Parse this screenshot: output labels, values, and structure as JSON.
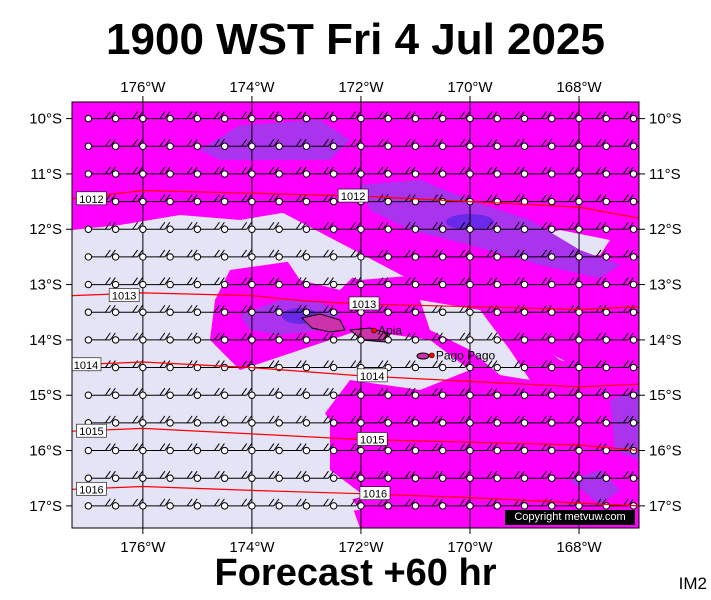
{
  "header": {
    "title": "1900 WST Fri 4 Jul 2025"
  },
  "footer": {
    "forecast": "Forecast +60 hr",
    "tag": "IM2"
  },
  "map": {
    "copyright": "Copyright metvuw.com",
    "lon_range": [
      -177.3,
      -166.9
    ],
    "lat_range": [
      -17.4,
      -9.7
    ],
    "lon_ticks": [
      {
        "value": -176,
        "label": "176°W"
      },
      {
        "value": -174,
        "label": "174°W"
      },
      {
        "value": -172,
        "label": "172°W"
      },
      {
        "value": -170,
        "label": "170°W"
      },
      {
        "value": -168,
        "label": "168°W"
      }
    ],
    "lat_ticks": [
      {
        "value": -10,
        "label": "10°S"
      },
      {
        "value": -11,
        "label": "11°S"
      },
      {
        "value": -12,
        "label": "12°S"
      },
      {
        "value": -13,
        "label": "13°S"
      },
      {
        "value": -14,
        "label": "14°S"
      },
      {
        "value": -15,
        "label": "15°S"
      },
      {
        "value": -16,
        "label": "16°S"
      },
      {
        "value": -17,
        "label": "17°S"
      }
    ],
    "places": [
      {
        "name": "Apia",
        "lon": -171.76,
        "lat": -13.83
      },
      {
        "name": "Pago Pago",
        "lon": -170.7,
        "lat": -14.28
      }
    ],
    "isobars": [
      {
        "label": "1012",
        "points": [
          [
            -177.3,
            -11.45
          ],
          [
            -176,
            -11.3
          ],
          [
            -174,
            -11.35
          ],
          [
            -172,
            -11.4
          ],
          [
            -170,
            -11.5
          ],
          [
            -168,
            -11.6
          ],
          [
            -166.9,
            -11.8
          ]
        ],
        "labels_at": [
          [
            -177.2,
            -11.45
          ],
          [
            -172.4,
            -11.4
          ]
        ]
      },
      {
        "label": "1013",
        "points": [
          [
            -177.3,
            -13.2
          ],
          [
            -176,
            -13.15
          ],
          [
            -174,
            -13.2
          ],
          [
            -173,
            -13.3
          ],
          [
            -172,
            -13.35
          ],
          [
            -170,
            -13.4
          ],
          [
            -168,
            -13.45
          ],
          [
            -166.9,
            -13.4
          ]
        ],
        "labels_at": [
          [
            -176.6,
            -13.2
          ],
          [
            -172.2,
            -13.35
          ]
        ]
      },
      {
        "label": "1014",
        "points": [
          [
            -177.3,
            -14.45
          ],
          [
            -176,
            -14.4
          ],
          [
            -174,
            -14.5
          ],
          [
            -172,
            -14.65
          ],
          [
            -170,
            -14.75
          ],
          [
            -168,
            -14.85
          ],
          [
            -166.9,
            -14.8
          ]
        ],
        "labels_at": [
          [
            -177.3,
            -14.45
          ],
          [
            -172.05,
            -14.65
          ]
        ]
      },
      {
        "label": "1015",
        "points": [
          [
            -177.3,
            -15.65
          ],
          [
            -176,
            -15.6
          ],
          [
            -174,
            -15.7
          ],
          [
            -172,
            -15.8
          ],
          [
            -170,
            -15.85
          ],
          [
            -168,
            -15.9
          ],
          [
            -166.9,
            -16.0
          ]
        ],
        "labels_at": [
          [
            -177.2,
            -15.65
          ],
          [
            -172.05,
            -15.8
          ]
        ]
      },
      {
        "label": "1016",
        "points": [
          [
            -177.3,
            -16.7
          ],
          [
            -176,
            -16.65
          ],
          [
            -174,
            -16.72
          ],
          [
            -172,
            -16.78
          ],
          [
            -170,
            -16.85
          ],
          [
            -168,
            -16.95
          ],
          [
            -166.9,
            -17.0
          ]
        ],
        "labels_at": [
          [
            -177.2,
            -16.7
          ],
          [
            -172.0,
            -16.78
          ]
        ]
      }
    ],
    "colors": {
      "rain_light": "#ff00ff",
      "rain_medium": "#aa33ee",
      "rain_heavy": "#6a28e8",
      "background": "#e4e4f6",
      "isobar": "#ff0000",
      "grid": "#000000",
      "land": "#cc33aa"
    },
    "wind_arrows": "uniform easterly barbs on 0.5° grid"
  }
}
